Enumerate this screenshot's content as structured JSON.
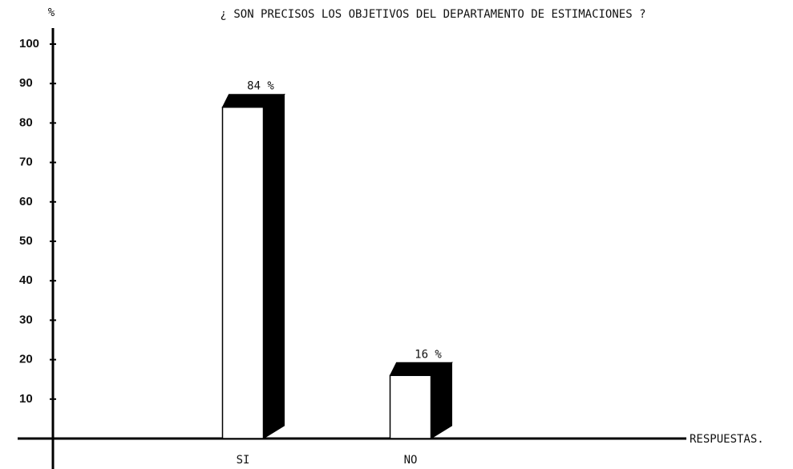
{
  "chart_data": {
    "type": "bar",
    "title": "¿ SON PRECISOS LOS OBJETIVOS DEL DEPARTAMENTO DE ESTIMACIONES ?",
    "y_label": "%",
    "x_label": "RESPUESTAS.",
    "categories": [
      "SI",
      "NO"
    ],
    "values": [
      84,
      16
    ],
    "value_labels": [
      "84 %",
      "16 %"
    ],
    "color": "#ffffff",
    "side_color": "#000000",
    "ylim": [
      0,
      100
    ],
    "yticks": [
      10,
      20,
      30,
      40,
      50,
      60,
      70,
      80,
      90,
      100
    ],
    "grid": false
  }
}
